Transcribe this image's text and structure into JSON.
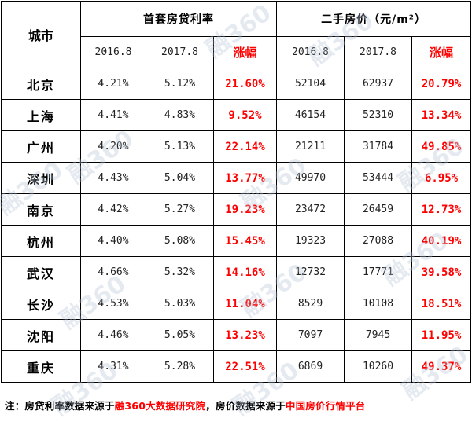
{
  "header": {
    "city_label": "城市",
    "group1": "首套房贷利率",
    "group2": "二手房价（元/m²）",
    "date1": "2016.8",
    "date2": "2017.8",
    "change": "涨幅"
  },
  "rows": [
    {
      "city": "北京",
      "r2016": "4.21%",
      "r2017": "5.12%",
      "r_chg": "21.60%",
      "p2016": "52104",
      "p2017": "62937",
      "p_chg": "20.79%"
    },
    {
      "city": "上海",
      "r2016": "4.41%",
      "r2017": "4.83%",
      "r_chg": "9.52%",
      "p2016": "46154",
      "p2017": "52310",
      "p_chg": "13.34%"
    },
    {
      "city": "广州",
      "r2016": "4.20%",
      "r2017": "5.13%",
      "r_chg": "22.14%",
      "p2016": "21211",
      "p2017": "31784",
      "p_chg": "49.85%"
    },
    {
      "city": "深圳",
      "r2016": "4.43%",
      "r2017": "5.04%",
      "r_chg": "13.77%",
      "p2016": "49970",
      "p2017": "53444",
      "p_chg": "6.95%"
    },
    {
      "city": "南京",
      "r2016": "4.42%",
      "r2017": "5.27%",
      "r_chg": "19.23%",
      "p2016": "23472",
      "p2017": "26459",
      "p_chg": "12.73%"
    },
    {
      "city": "杭州",
      "r2016": "4.40%",
      "r2017": "5.08%",
      "r_chg": "15.45%",
      "p2016": "19323",
      "p2017": "27088",
      "p_chg": "40.19%"
    },
    {
      "city": "武汉",
      "r2016": "4.66%",
      "r2017": "5.32%",
      "r_chg": "14.16%",
      "p2016": "12732",
      "p2017": "17771",
      "p_chg": "39.58%"
    },
    {
      "city": "长沙",
      "r2016": "4.53%",
      "r2017": "5.03%",
      "r_chg": "11.04%",
      "p2016": "8529",
      "p2017": "10108",
      "p_chg": "18.51%"
    },
    {
      "city": "沈阳",
      "r2016": "4.46%",
      "r2017": "5.05%",
      "r_chg": "13.23%",
      "p2016": "7097",
      "p2017": "7945",
      "p_chg": "11.95%"
    },
    {
      "city": "重庆",
      "r2016": "4.31%",
      "r2017": "5.28%",
      "r_chg": "22.51%",
      "p2016": "6869",
      "p2017": "10260",
      "p_chg": "49.37%"
    }
  ],
  "note": {
    "prefix": "注：房贷利率数据来源于",
    "source1": "融360大数据研究院",
    "middle": "，房价数据来源于",
    "source2": "中国房价行情平台"
  },
  "watermark": "融360",
  "colors": {
    "highlight": "#ff0000",
    "watermark": "#b4c3d7"
  }
}
